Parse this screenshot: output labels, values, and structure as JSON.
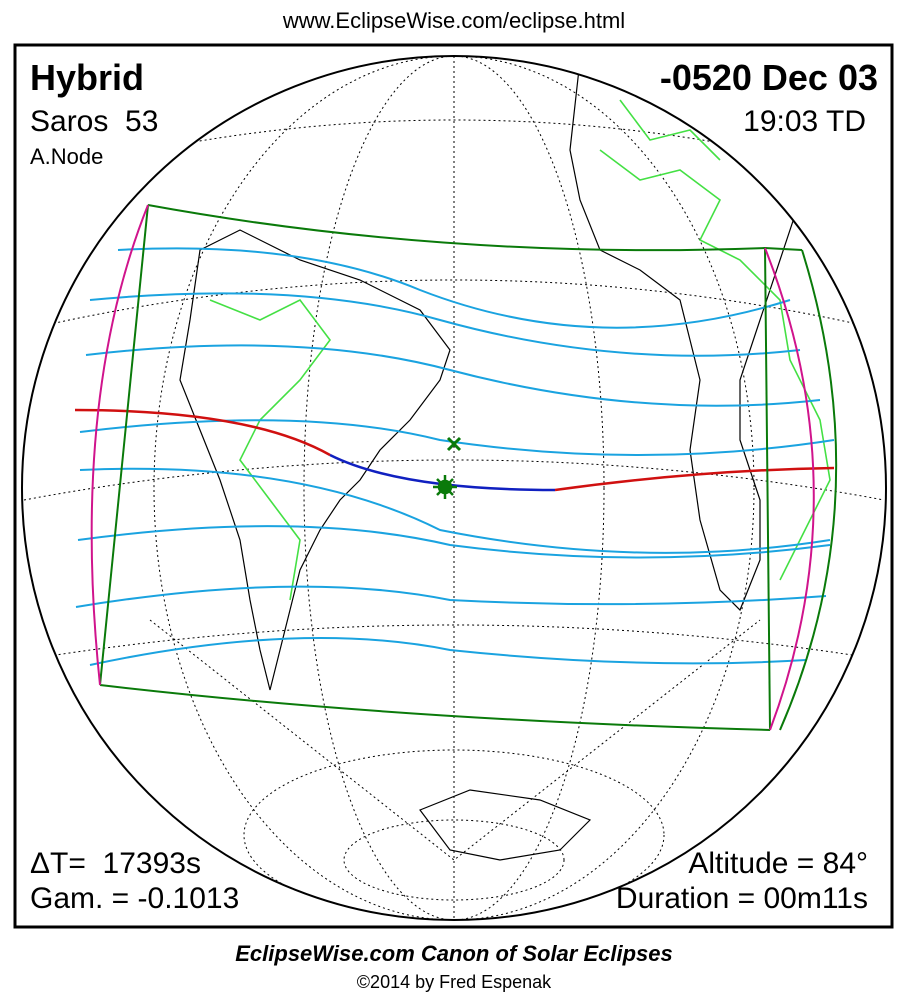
{
  "header": {
    "url": "www.EclipseWise.com/eclipse.html"
  },
  "panel": {
    "eclipse_type": "Hybrid",
    "saros": "Saros  53",
    "node": "A.Node",
    "date": "-0520 Dec 03",
    "time": "19:03 TD",
    "delta_t": "ΔT=  17393s",
    "gamma": "Gam. = -0.1013",
    "altitude": "Altitude = 84°",
    "duration": "Duration = 00m11s"
  },
  "footer": {
    "title": "EclipseWise.com Canon of Solar Eclipses",
    "credit": "©2014 by Fred Espenak"
  }
}
